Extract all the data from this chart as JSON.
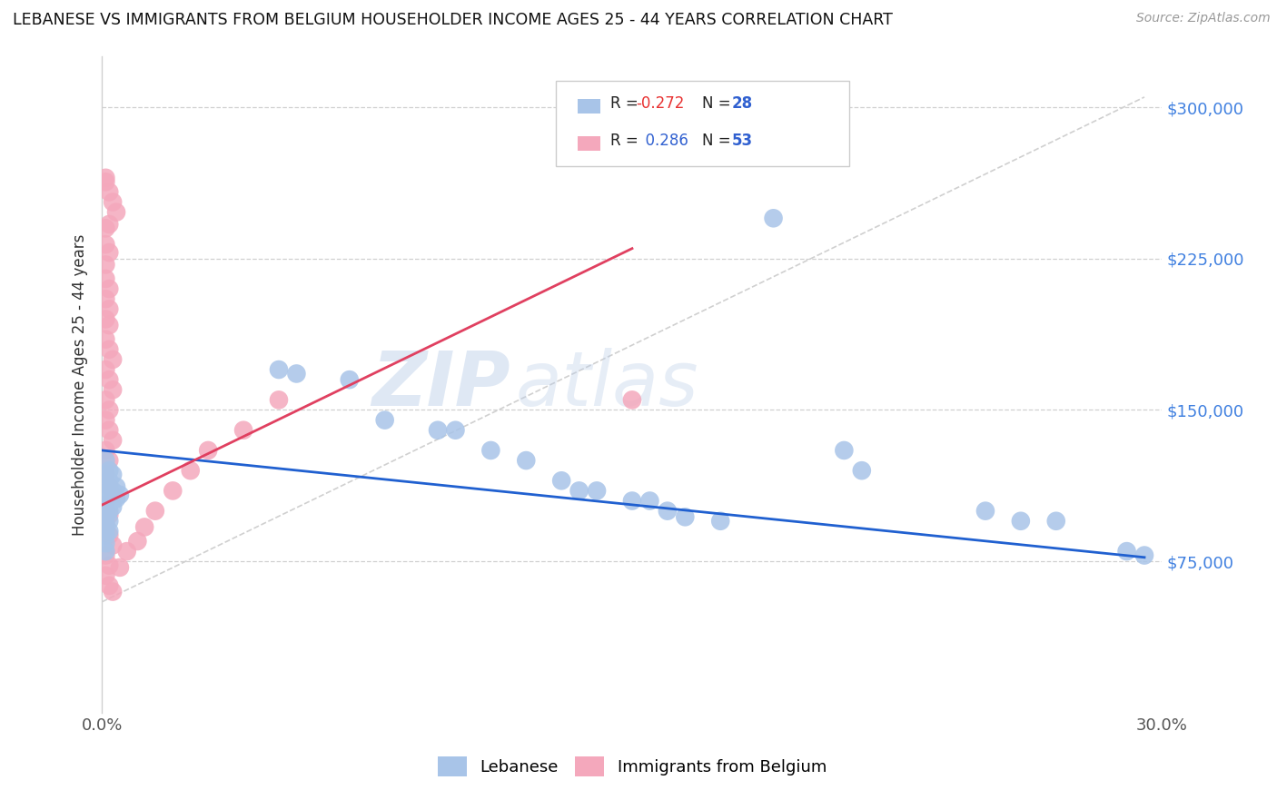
{
  "title": "LEBANESE VS IMMIGRANTS FROM BELGIUM HOUSEHOLDER INCOME AGES 25 - 44 YEARS CORRELATION CHART",
  "source": "Source: ZipAtlas.com",
  "ylabel": "Householder Income Ages 25 - 44 years",
  "xlim": [
    0.0,
    0.3
  ],
  "ylim": [
    0,
    325000
  ],
  "xtick_positions": [
    0.0,
    0.05,
    0.1,
    0.15,
    0.2,
    0.25,
    0.3
  ],
  "xtick_labels": [
    "0.0%",
    "",
    "",
    "",
    "",
    "",
    "30.0%"
  ],
  "ytick_labels": [
    "$75,000",
    "$150,000",
    "$225,000",
    "$300,000"
  ],
  "ytick_values": [
    75000,
    150000,
    225000,
    300000
  ],
  "blue_color": "#a8c4e8",
  "pink_color": "#f4a8bc",
  "blue_line_color": "#2060d0",
  "pink_line_color": "#e04060",
  "diag_color": "#d0d0d0",
  "background_color": "#ffffff",
  "watermark_zip": "ZIP",
  "watermark_atlas": "atlas",
  "lebanese_scatter": [
    [
      0.001,
      125000
    ],
    [
      0.001,
      118000
    ],
    [
      0.001,
      112000
    ],
    [
      0.001,
      108000
    ],
    [
      0.001,
      104000
    ],
    [
      0.001,
      100000
    ],
    [
      0.001,
      97000
    ],
    [
      0.001,
      94000
    ],
    [
      0.001,
      91000
    ],
    [
      0.001,
      88000
    ],
    [
      0.001,
      84000
    ],
    [
      0.001,
      80000
    ],
    [
      0.002,
      120000
    ],
    [
      0.002,
      115000
    ],
    [
      0.002,
      110000
    ],
    [
      0.002,
      105000
    ],
    [
      0.002,
      100000
    ],
    [
      0.002,
      95000
    ],
    [
      0.002,
      90000
    ],
    [
      0.003,
      118000
    ],
    [
      0.003,
      110000
    ],
    [
      0.003,
      102000
    ],
    [
      0.004,
      112000
    ],
    [
      0.004,
      106000
    ],
    [
      0.005,
      108000
    ],
    [
      0.05,
      170000
    ],
    [
      0.055,
      168000
    ],
    [
      0.07,
      165000
    ],
    [
      0.08,
      145000
    ],
    [
      0.095,
      140000
    ],
    [
      0.1,
      140000
    ],
    [
      0.11,
      130000
    ],
    [
      0.12,
      125000
    ],
    [
      0.13,
      115000
    ],
    [
      0.135,
      110000
    ],
    [
      0.14,
      110000
    ],
    [
      0.15,
      105000
    ],
    [
      0.155,
      105000
    ],
    [
      0.16,
      100000
    ],
    [
      0.165,
      97000
    ],
    [
      0.175,
      95000
    ],
    [
      0.19,
      245000
    ],
    [
      0.21,
      130000
    ],
    [
      0.215,
      120000
    ],
    [
      0.25,
      100000
    ],
    [
      0.26,
      95000
    ],
    [
      0.27,
      95000
    ],
    [
      0.29,
      80000
    ],
    [
      0.295,
      78000
    ]
  ],
  "belgium_scatter": [
    [
      0.001,
      265000
    ],
    [
      0.001,
      263000
    ],
    [
      0.002,
      258000
    ],
    [
      0.003,
      253000
    ],
    [
      0.004,
      248000
    ],
    [
      0.001,
      240000
    ],
    [
      0.002,
      242000
    ],
    [
      0.001,
      232000
    ],
    [
      0.002,
      228000
    ],
    [
      0.001,
      222000
    ],
    [
      0.001,
      215000
    ],
    [
      0.002,
      210000
    ],
    [
      0.001,
      205000
    ],
    [
      0.002,
      200000
    ],
    [
      0.001,
      195000
    ],
    [
      0.002,
      192000
    ],
    [
      0.001,
      185000
    ],
    [
      0.002,
      180000
    ],
    [
      0.003,
      175000
    ],
    [
      0.001,
      170000
    ],
    [
      0.002,
      165000
    ],
    [
      0.003,
      160000
    ],
    [
      0.001,
      155000
    ],
    [
      0.002,
      150000
    ],
    [
      0.001,
      145000
    ],
    [
      0.002,
      140000
    ],
    [
      0.003,
      135000
    ],
    [
      0.001,
      130000
    ],
    [
      0.002,
      125000
    ],
    [
      0.001,
      118000
    ],
    [
      0.002,
      112000
    ],
    [
      0.003,
      108000
    ],
    [
      0.001,
      103000
    ],
    [
      0.002,
      98000
    ],
    [
      0.001,
      93000
    ],
    [
      0.002,
      88000
    ],
    [
      0.003,
      83000
    ],
    [
      0.001,
      78000
    ],
    [
      0.002,
      73000
    ],
    [
      0.001,
      68000
    ],
    [
      0.002,
      63000
    ],
    [
      0.003,
      60000
    ],
    [
      0.005,
      72000
    ],
    [
      0.007,
      80000
    ],
    [
      0.01,
      85000
    ],
    [
      0.012,
      92000
    ],
    [
      0.015,
      100000
    ],
    [
      0.02,
      110000
    ],
    [
      0.025,
      120000
    ],
    [
      0.03,
      130000
    ],
    [
      0.04,
      140000
    ],
    [
      0.05,
      155000
    ],
    [
      0.15,
      155000
    ]
  ],
  "blue_line_x": [
    0.0,
    0.295
  ],
  "blue_line_y": [
    130000,
    77000
  ],
  "pink_line_x": [
    0.0,
    0.15
  ],
  "pink_line_y": [
    103000,
    230000
  ],
  "diag_line_x": [
    0.0,
    0.295
  ],
  "diag_line_y": [
    55000,
    305000
  ]
}
